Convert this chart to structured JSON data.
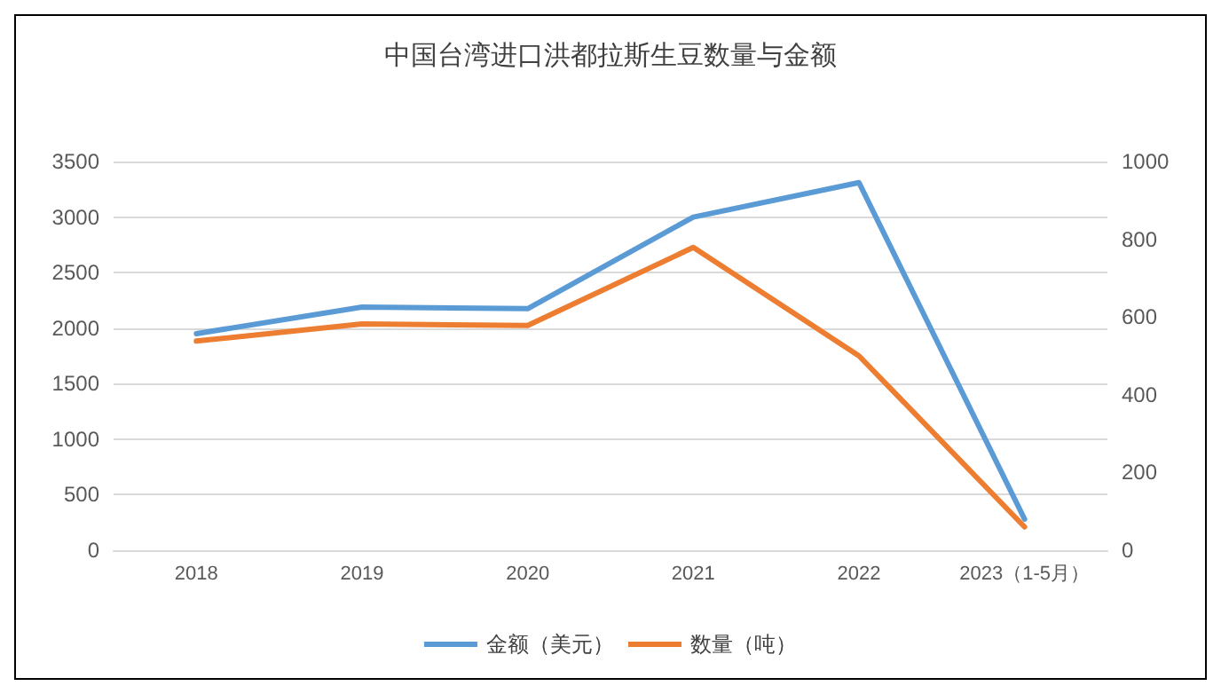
{
  "chart_data": {
    "type": "line",
    "title": "中国台湾进口洪都拉斯生豆数量与金额",
    "categories": [
      "2018",
      "2019",
      "2020",
      "2021",
      "2022",
      "2023（1-5月）"
    ],
    "series": [
      {
        "name": "金额（美元）",
        "color": "#5b9bd5",
        "values": [
          1950,
          2190,
          2175,
          3000,
          3310,
          280
        ]
      },
      {
        "name": "数量（吨）",
        "color": "#ed7d31",
        "values": [
          538,
          582,
          578,
          779,
          500,
          60
        ],
        "axis": "y2"
      }
    ],
    "ylim": [
      0,
      3500
    ],
    "yticks": [
      0,
      500,
      1000,
      1500,
      2000,
      2500,
      3000,
      3500
    ],
    "y2lim": [
      0,
      1000
    ],
    "y2ticks": [
      0,
      200,
      400,
      600,
      800,
      1000
    ],
    "grid": "y",
    "legend": "bottom",
    "marker": "none",
    "line_style": "solid"
  }
}
